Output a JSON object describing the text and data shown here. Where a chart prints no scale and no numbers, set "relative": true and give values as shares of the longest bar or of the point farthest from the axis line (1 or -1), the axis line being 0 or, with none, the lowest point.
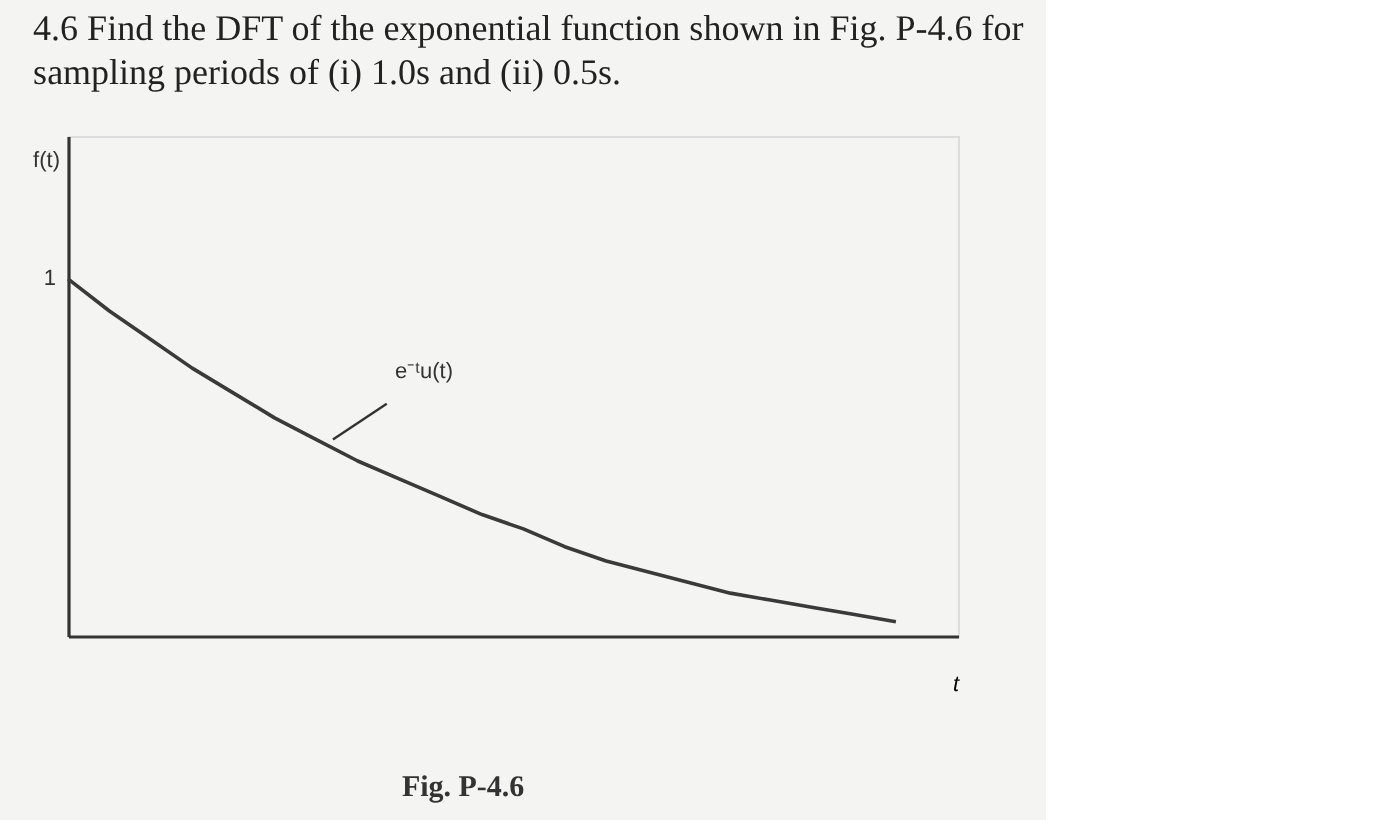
{
  "chart_data": {
    "type": "line",
    "title": "4.6 Find the DFT of the exponential function shown in Fig. P-4.6 for sampling periods of (i) 1.0s and (ii) 0.5s.",
    "xlabel": "t",
    "relative": true,
    "grid": false,
    "legend": false,
    "marker": "none",
    "line_style": "solid",
    "categories": [
      null,
      null,
      null,
      null,
      null,
      null,
      null,
      null,
      null,
      null,
      null,
      null,
      null,
      null,
      null,
      null,
      null,
      null,
      null,
      null,
      null
    ],
    "series": [
      {
        "color": "#3a3a3a",
        "values": [
          1.0,
          0.91,
          0.83,
          0.75,
          0.68,
          0.61,
          0.55,
          0.49,
          0.44,
          0.39,
          0.34,
          0.3,
          0.25,
          0.21,
          0.18,
          0.15,
          0.12,
          0.1,
          0.08,
          0.06,
          0.04
        ]
      }
    ],
    "annotations": [
      "1",
      "e⁻ᵗu(t)",
      "Fig. P-4.6",
      "f(t)"
    ]
  }
}
